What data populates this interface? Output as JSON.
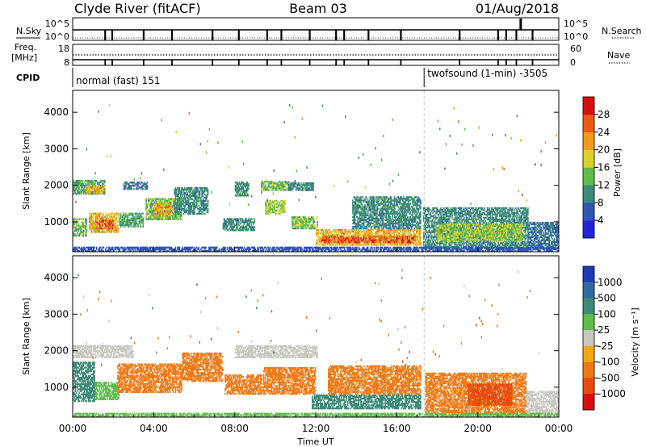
{
  "header": {
    "title": "Clyde River (fitACF)",
    "beam": "Beam 03",
    "date": "01/Aug/2018"
  },
  "strip_nsky": {
    "left_label": "N.Sky",
    "right_label": "N.Search",
    "left_ticks": [
      "10^5",
      "10^0"
    ],
    "right_ticks": [
      "10^5",
      "10^0"
    ]
  },
  "strip_freq": {
    "left_label_1": "Freq.",
    "left_label_2": "[MHz]",
    "right_label": "Nave",
    "left_ticks": [
      "18",
      "8"
    ],
    "right_ticks": [
      "60",
      "0"
    ]
  },
  "cpid": {
    "label": "CPID",
    "segments": [
      {
        "start_hour": 0,
        "end_hour": 17.35,
        "text": "normal (fast) 151"
      },
      {
        "start_hour": 17.35,
        "end_hour": 24,
        "text": "twofsound (1-min) -3505"
      }
    ]
  },
  "x_axis": {
    "label": "Time UT",
    "ticks": [
      "00:00",
      "04:00",
      "08:00",
      "12:00",
      "16:00",
      "20:00",
      "00:00"
    ],
    "range_hours": [
      0,
      24
    ]
  },
  "chart_data": [
    {
      "type": "heatmap",
      "name": "power",
      "ylabel": "Slant Range [km]",
      "ylim": [
        180,
        4600
      ],
      "yticks": [
        1000,
        2000,
        3000,
        4000
      ],
      "colorbar": {
        "label": "Power [dB]",
        "ticks": [
          "4",
          "8",
          "12",
          "16",
          "20",
          "24",
          "28"
        ],
        "range": [
          0,
          32
        ],
        "colors": [
          "#1f26d9",
          "#2f55b8",
          "#3d8a7a",
          "#5fbd4a",
          "#dccf2a",
          "#f39a1a",
          "#ec5a12",
          "#d81010"
        ]
      },
      "regions": [
        {
          "t": [
            0.0,
            1.6
          ],
          "r": [
            1750,
            2150
          ],
          "v": 12
        },
        {
          "t": [
            0.6,
            1.6
          ],
          "r": [
            1780,
            2000
          ],
          "v": 20
        },
        {
          "t": [
            0.0,
            0.7
          ],
          "r": [
            600,
            1100
          ],
          "v": 14
        },
        {
          "t": [
            0.8,
            2.3
          ],
          "r": [
            700,
            1250
          ],
          "v": 20
        },
        {
          "t": [
            1.1,
            2.0
          ],
          "r": [
            800,
            1050
          ],
          "v": 26
        },
        {
          "t": [
            2.3,
            3.5
          ],
          "r": [
            850,
            1250
          ],
          "v": 12
        },
        {
          "t": [
            3.6,
            5.4
          ],
          "r": [
            1050,
            1650
          ],
          "v": 14
        },
        {
          "t": [
            4.0,
            4.9
          ],
          "r": [
            1150,
            1500
          ],
          "v": 22
        },
        {
          "t": [
            5.0,
            6.7
          ],
          "r": [
            1200,
            1950
          ],
          "v": 10
        },
        {
          "t": [
            2.5,
            3.7
          ],
          "r": [
            1880,
            2100
          ],
          "v": 8
        },
        {
          "t": [
            7.4,
            9.0
          ],
          "r": [
            750,
            1100
          ],
          "v": 10
        },
        {
          "t": [
            8.0,
            8.7
          ],
          "r": [
            1700,
            2100
          ],
          "v": 10
        },
        {
          "t": [
            9.3,
            10.8
          ],
          "r": [
            1850,
            2120
          ],
          "v": 14
        },
        {
          "t": [
            9.5,
            10.5
          ],
          "r": [
            1200,
            1600
          ],
          "v": 16
        },
        {
          "t": [
            10.8,
            12.1
          ],
          "r": [
            800,
            1150
          ],
          "v": 14
        },
        {
          "t": [
            10.6,
            11.9
          ],
          "r": [
            1850,
            2080
          ],
          "v": 10
        },
        {
          "t": [
            12.0,
            17.2
          ],
          "r": [
            350,
            800
          ],
          "v": 20
        },
        {
          "t": [
            12.3,
            16.9
          ],
          "r": [
            420,
            620
          ],
          "v": 26
        },
        {
          "t": [
            13.8,
            17.2
          ],
          "r": [
            800,
            1700
          ],
          "v": 10
        },
        {
          "t": [
            17.3,
            22.5
          ],
          "r": [
            250,
            1400
          ],
          "v": 10
        },
        {
          "t": [
            17.9,
            22.2
          ],
          "r": [
            450,
            950
          ],
          "v": 16
        },
        {
          "t": [
            22.5,
            24.0
          ],
          "r": [
            250,
            1000
          ],
          "v": 8
        },
        {
          "t": [
            0.0,
            24.0
          ],
          "r": [
            180,
            320
          ],
          "v": 6
        }
      ]
    },
    {
      "type": "heatmap",
      "name": "velocity",
      "ylabel": "Slant Range [km]",
      "ylim": [
        180,
        4600
      ],
      "yticks": [
        1000,
        2000,
        3000,
        4000
      ],
      "colorbar": {
        "label": "Velocity [m s⁻¹]",
        "ticks": [
          "1000",
          "500",
          "100",
          "25",
          "-25",
          "-100",
          "-500",
          "-1000"
        ],
        "colors": [
          "#1f3bb5",
          "#2f6aa0",
          "#3d8a78",
          "#5fbd4a",
          "#c8c8c0",
          "#f3a818",
          "#f07a16",
          "#ea4a10",
          "#d81010"
        ]
      },
      "regions": [
        {
          "t": [
            0.0,
            3.0
          ],
          "r": [
            1800,
            2150
          ],
          "v": 0
        },
        {
          "t": [
            0.0,
            1.1
          ],
          "r": [
            600,
            1700
          ],
          "v": 200
        },
        {
          "t": [
            1.1,
            2.3
          ],
          "r": [
            650,
            1150
          ],
          "v": 60
        },
        {
          "t": [
            2.2,
            5.4
          ],
          "r": [
            850,
            1650
          ],
          "v": -300
        },
        {
          "t": [
            5.4,
            7.4
          ],
          "r": [
            1150,
            1950
          ],
          "v": -200
        },
        {
          "t": [
            7.5,
            9.4
          ],
          "r": [
            800,
            1350
          ],
          "v": -300
        },
        {
          "t": [
            8.0,
            12.1
          ],
          "r": [
            1800,
            2150
          ],
          "v": 0
        },
        {
          "t": [
            9.4,
            12.0
          ],
          "r": [
            800,
            1550
          ],
          "v": -300
        },
        {
          "t": [
            11.8,
            17.2
          ],
          "r": [
            400,
            800
          ],
          "v": 150
        },
        {
          "t": [
            12.6,
            17.2
          ],
          "r": [
            800,
            1600
          ],
          "v": -300
        },
        {
          "t": [
            17.4,
            22.4
          ],
          "r": [
            250,
            1400
          ],
          "v": -400
        },
        {
          "t": [
            19.5,
            21.7
          ],
          "r": [
            500,
            1100
          ],
          "v": -800
        },
        {
          "t": [
            22.4,
            24.0
          ],
          "r": [
            250,
            900
          ],
          "v": 0
        },
        {
          "t": [
            0.0,
            24.0
          ],
          "r": [
            180,
            300
          ],
          "v": 50
        }
      ]
    }
  ],
  "strip_data": {
    "nsky_gaps_hours": [
      1.6,
      1.95,
      3.5,
      4.9,
      6.9,
      8.2,
      9.6,
      10.3,
      11.7,
      13.0,
      13.4,
      14.6,
      16.2,
      19.1,
      21.0,
      21.4,
      21.9,
      22.7
    ],
    "nsky_spike_hour": 22.1,
    "nave_level": 45,
    "freq_level": 10
  }
}
